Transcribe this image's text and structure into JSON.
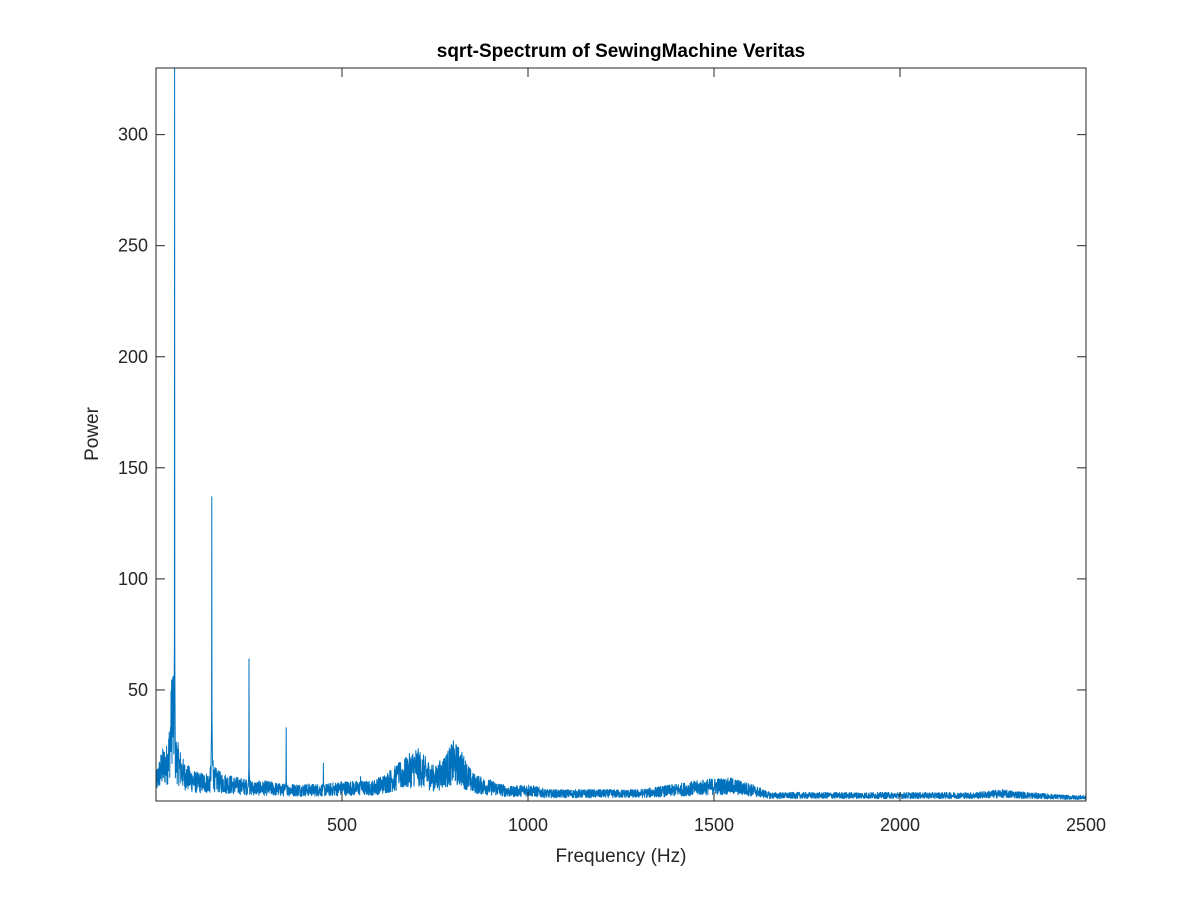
{
  "colors": {
    "line": "#0072BD",
    "axes": "#262626",
    "background": "#FFFFFF"
  },
  "chart_data": {
    "type": "line",
    "title": "sqrt-Spectrum of SewingMachine Veritas",
    "xlabel": "Frequency (Hz)",
    "ylabel": "Power",
    "xlim": [
      0,
      2500
    ],
    "ylim": [
      0,
      330
    ],
    "grid": false,
    "legend": "none",
    "xticks": [
      {
        "value": 500,
        "label": "500"
      },
      {
        "value": 1000,
        "label": "1000"
      },
      {
        "value": 1500,
        "label": "1500"
      },
      {
        "value": 2000,
        "label": "2000"
      },
      {
        "value": 2500,
        "label": "2500"
      }
    ],
    "yticks": [
      {
        "value": 50,
        "label": "50"
      },
      {
        "value": 100,
        "label": "100"
      },
      {
        "value": 150,
        "label": "150"
      },
      {
        "value": 200,
        "label": "200"
      },
      {
        "value": 250,
        "label": "250"
      },
      {
        "value": 300,
        "label": "300"
      }
    ],
    "series": [
      {
        "color": "#0072BD",
        "envelope": [
          [
            0,
            10
          ],
          [
            15,
            18
          ],
          [
            30,
            20
          ],
          [
            38,
            30
          ],
          [
            42,
            45
          ],
          [
            45,
            50
          ],
          [
            48,
            40
          ],
          [
            52,
            24
          ],
          [
            60,
            20
          ],
          [
            75,
            14
          ],
          [
            90,
            12
          ],
          [
            110,
            10
          ],
          [
            130,
            10
          ],
          [
            145,
            10
          ],
          [
            150,
            24
          ],
          [
            156,
            12
          ],
          [
            175,
            10
          ],
          [
            200,
            9
          ],
          [
            230,
            8
          ],
          [
            260,
            7
          ],
          [
            300,
            7
          ],
          [
            340,
            6
          ],
          [
            380,
            6
          ],
          [
            420,
            6
          ],
          [
            460,
            6
          ],
          [
            500,
            7
          ],
          [
            540,
            7
          ],
          [
            580,
            7
          ],
          [
            610,
            9
          ],
          [
            640,
            12
          ],
          [
            670,
            15
          ],
          [
            700,
            19
          ],
          [
            720,
            16
          ],
          [
            750,
            12
          ],
          [
            780,
            17
          ],
          [
            800,
            21
          ],
          [
            820,
            18
          ],
          [
            850,
            10
          ],
          [
            880,
            8
          ],
          [
            910,
            7
          ],
          [
            950,
            5
          ],
          [
            1000,
            6
          ],
          [
            1050,
            4
          ],
          [
            1100,
            4
          ],
          [
            1200,
            4
          ],
          [
            1300,
            4
          ],
          [
            1400,
            6
          ],
          [
            1450,
            7
          ],
          [
            1500,
            8
          ],
          [
            1550,
            8
          ],
          [
            1600,
            6
          ],
          [
            1650,
            3
          ],
          [
            1700,
            3
          ],
          [
            1800,
            3
          ],
          [
            1900,
            3
          ],
          [
            2000,
            3
          ],
          [
            2100,
            3
          ],
          [
            2200,
            3
          ],
          [
            2270,
            4
          ],
          [
            2350,
            3
          ],
          [
            2450,
            2
          ],
          [
            2500,
            2
          ]
        ],
        "peaks": [
          {
            "x": 50,
            "y": 330
          },
          {
            "x": 150,
            "y": 137
          },
          {
            "x": 250,
            "y": 64
          },
          {
            "x": 350,
            "y": 33
          },
          {
            "x": 450,
            "y": 17
          },
          {
            "x": 550,
            "y": 11
          },
          {
            "x": 650,
            "y": 7
          }
        ]
      }
    ]
  }
}
